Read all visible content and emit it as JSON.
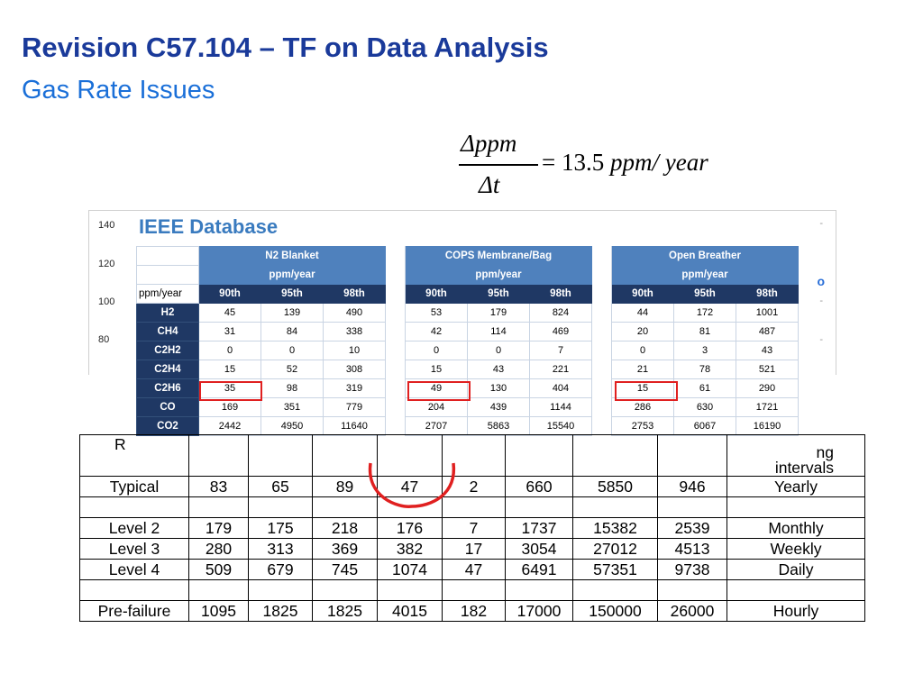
{
  "slide": {
    "title": "Revision C57.104 – TF on Data Analysis",
    "subtitle": "Gas Rate Issues"
  },
  "formula": {
    "numerator": "Δppm",
    "denominator": "Δt",
    "rhs_eq": "=",
    "rhs_value": "13.5",
    "rhs_unit": "ppm/ year"
  },
  "background_chart": {
    "y_ticks": [
      "140",
      "120",
      "100",
      "80"
    ],
    "legend_fragment": "o"
  },
  "ieee_database": {
    "title": "IEEE Database",
    "groups": [
      {
        "name": "N2 Blanket",
        "unit": "ppm/year"
      },
      {
        "name": "COPS Membrane/Bag",
        "unit": "ppm/year"
      },
      {
        "name": "Open Breather",
        "unit": "ppm/year"
      }
    ],
    "row_label_header": "ppm/year",
    "percentiles": [
      "90th",
      "95th",
      "98th"
    ],
    "rows": [
      {
        "gas": "H2",
        "values": [
          "45",
          "139",
          "490",
          "53",
          "179",
          "824",
          "44",
          "172",
          "1001"
        ]
      },
      {
        "gas": "CH4",
        "values": [
          "31",
          "84",
          "338",
          "42",
          "114",
          "469",
          "20",
          "81",
          "487"
        ]
      },
      {
        "gas": "C2H2",
        "values": [
          "0",
          "0",
          "10",
          "0",
          "0",
          "7",
          "0",
          "3",
          "43"
        ]
      },
      {
        "gas": "C2H4",
        "values": [
          "15",
          "52",
          "308",
          "15",
          "43",
          "221",
          "21",
          "78",
          "521"
        ]
      },
      {
        "gas": "C2H6",
        "values": [
          "35",
          "98",
          "319",
          "49",
          "130",
          "404",
          "15",
          "61",
          "290"
        ]
      },
      {
        "gas": "CO",
        "values": [
          "169",
          "351",
          "779",
          "204",
          "439",
          "1144",
          "286",
          "630",
          "1721"
        ]
      },
      {
        "gas": "CO2",
        "values": [
          "2442",
          "4950",
          "11640",
          "2707",
          "5863",
          "15540",
          "2753",
          "6067",
          "16190"
        ]
      }
    ],
    "highlight_color": "#e02020"
  },
  "lower_table": {
    "header_left": "R",
    "header_right": [
      "ng",
      "intervals"
    ],
    "rows": [
      {
        "label": "Typical",
        "values": [
          "83",
          "65",
          "89",
          "47",
          "2",
          "660",
          "5850",
          "946"
        ],
        "interval": "Yearly"
      },
      {
        "blank": true
      },
      {
        "label": "Level 2",
        "values": [
          "179",
          "175",
          "218",
          "176",
          "7",
          "1737",
          "15382",
          "2539"
        ],
        "interval": "Monthly"
      },
      {
        "label": "Level 3",
        "values": [
          "280",
          "313",
          "369",
          "382",
          "17",
          "3054",
          "27012",
          "4513"
        ],
        "interval": "Weekly"
      },
      {
        "label": "Level 4",
        "values": [
          "509",
          "679",
          "745",
          "1074",
          "47",
          "6491",
          "57351",
          "9738"
        ],
        "interval": "Daily"
      },
      {
        "blank": true
      },
      {
        "label": "Pre-failure",
        "values": [
          "1095",
          "1825",
          "1825",
          "4015",
          "182",
          "17000",
          "150000",
          "26000"
        ],
        "interval": "Hourly"
      }
    ]
  },
  "colors": {
    "title": "#1a3a9a",
    "subtitle": "#1a6fd8",
    "header_blue": "#4f81bd",
    "header_navy": "#1f3864",
    "highlight_red": "#e02020"
  }
}
